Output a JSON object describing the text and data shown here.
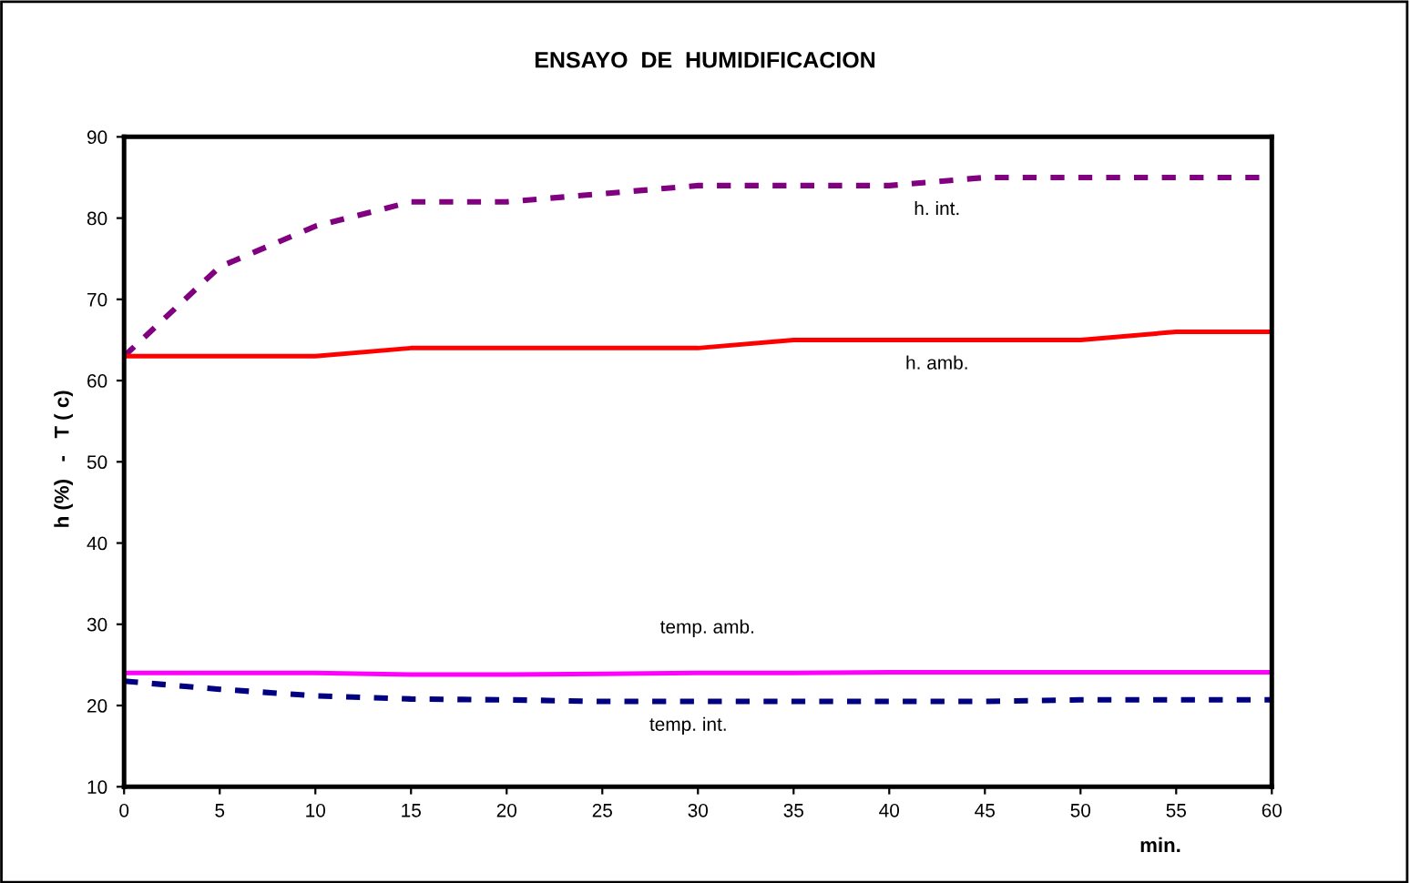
{
  "chart_data": {
    "type": "line",
    "title": "ENSAYO  DE  HUMIDIFICACION",
    "xlabel": "min.",
    "ylabel": "h (%)   -   T ( c)",
    "x": [
      0,
      5,
      10,
      15,
      20,
      25,
      30,
      35,
      40,
      45,
      50,
      55,
      60
    ],
    "series": [
      {
        "name": "h. int.",
        "color": "#800080",
        "line_style": "dashed",
        "values": [
          63,
          74,
          79,
          82,
          82,
          83,
          84,
          84,
          84,
          85,
          85,
          85,
          85
        ]
      },
      {
        "name": "h. amb.",
        "color": "#ff0000",
        "line_style": "solid",
        "values": [
          63,
          63,
          63,
          64,
          64,
          64,
          64,
          65,
          65,
          65,
          65,
          66,
          66
        ]
      },
      {
        "name": "temp. amb.",
        "color": "#ff00ff",
        "line_style": "solid",
        "values": [
          24,
          24,
          24,
          23.8,
          23.8,
          23.9,
          24,
          24,
          24.1,
          24.1,
          24.1,
          24.1,
          24.1
        ]
      },
      {
        "name": "temp. int.",
        "color": "#000080",
        "line_style": "dashed",
        "values": [
          23,
          22,
          21.2,
          20.8,
          20.7,
          20.5,
          20.5,
          20.5,
          20.5,
          20.5,
          20.7,
          20.7,
          20.7
        ]
      }
    ],
    "xlim": [
      0,
      60
    ],
    "xticks": [
      0,
      5,
      10,
      15,
      20,
      25,
      30,
      35,
      40,
      45,
      50,
      55,
      60
    ],
    "ylim": [
      10,
      90
    ],
    "yticks": [
      10,
      20,
      30,
      40,
      50,
      60,
      70,
      80,
      90
    ],
    "grid": false,
    "legend": false
  }
}
